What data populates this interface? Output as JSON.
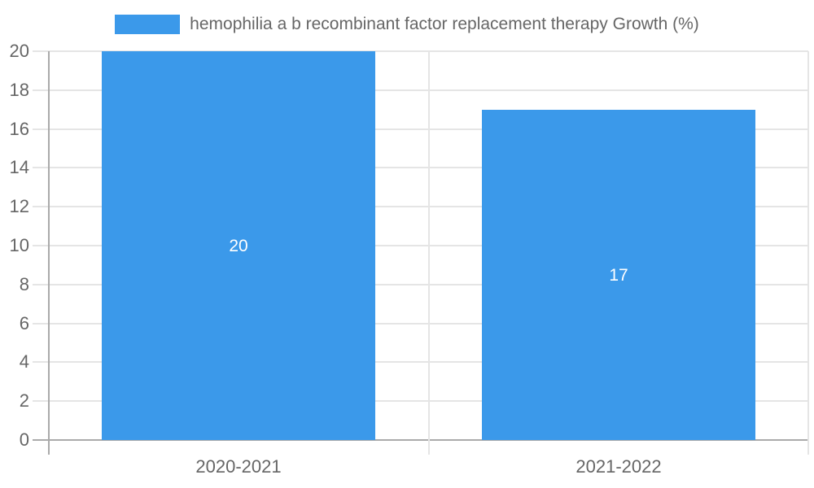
{
  "legend": {
    "label": "hemophilia a b recombinant factor replacement therapy Growth (%)"
  },
  "chart_data": {
    "type": "bar",
    "title": "",
    "xlabel": "",
    "ylabel": "",
    "categories": [
      "2020-2021",
      "2021-2022"
    ],
    "values": [
      20,
      17
    ],
    "value_labels": [
      "20",
      "17"
    ],
    "series_name": "hemophilia a b recombinant factor replacement therapy Growth (%)",
    "ylim": [
      0,
      20
    ],
    "ytick_step": 2,
    "ytick_labels": [
      "0",
      "2",
      "4",
      "6",
      "8",
      "10",
      "12",
      "14",
      "16",
      "18",
      "20"
    ],
    "grid": true,
    "legend_position": "top-center",
    "colors": {
      "bar": "#3b99ea",
      "grid": "#e5e5e5",
      "axis": "#aaaaaa",
      "tick_text": "#666666",
      "value_text": "#ffffff",
      "background": "#ffffff"
    }
  }
}
